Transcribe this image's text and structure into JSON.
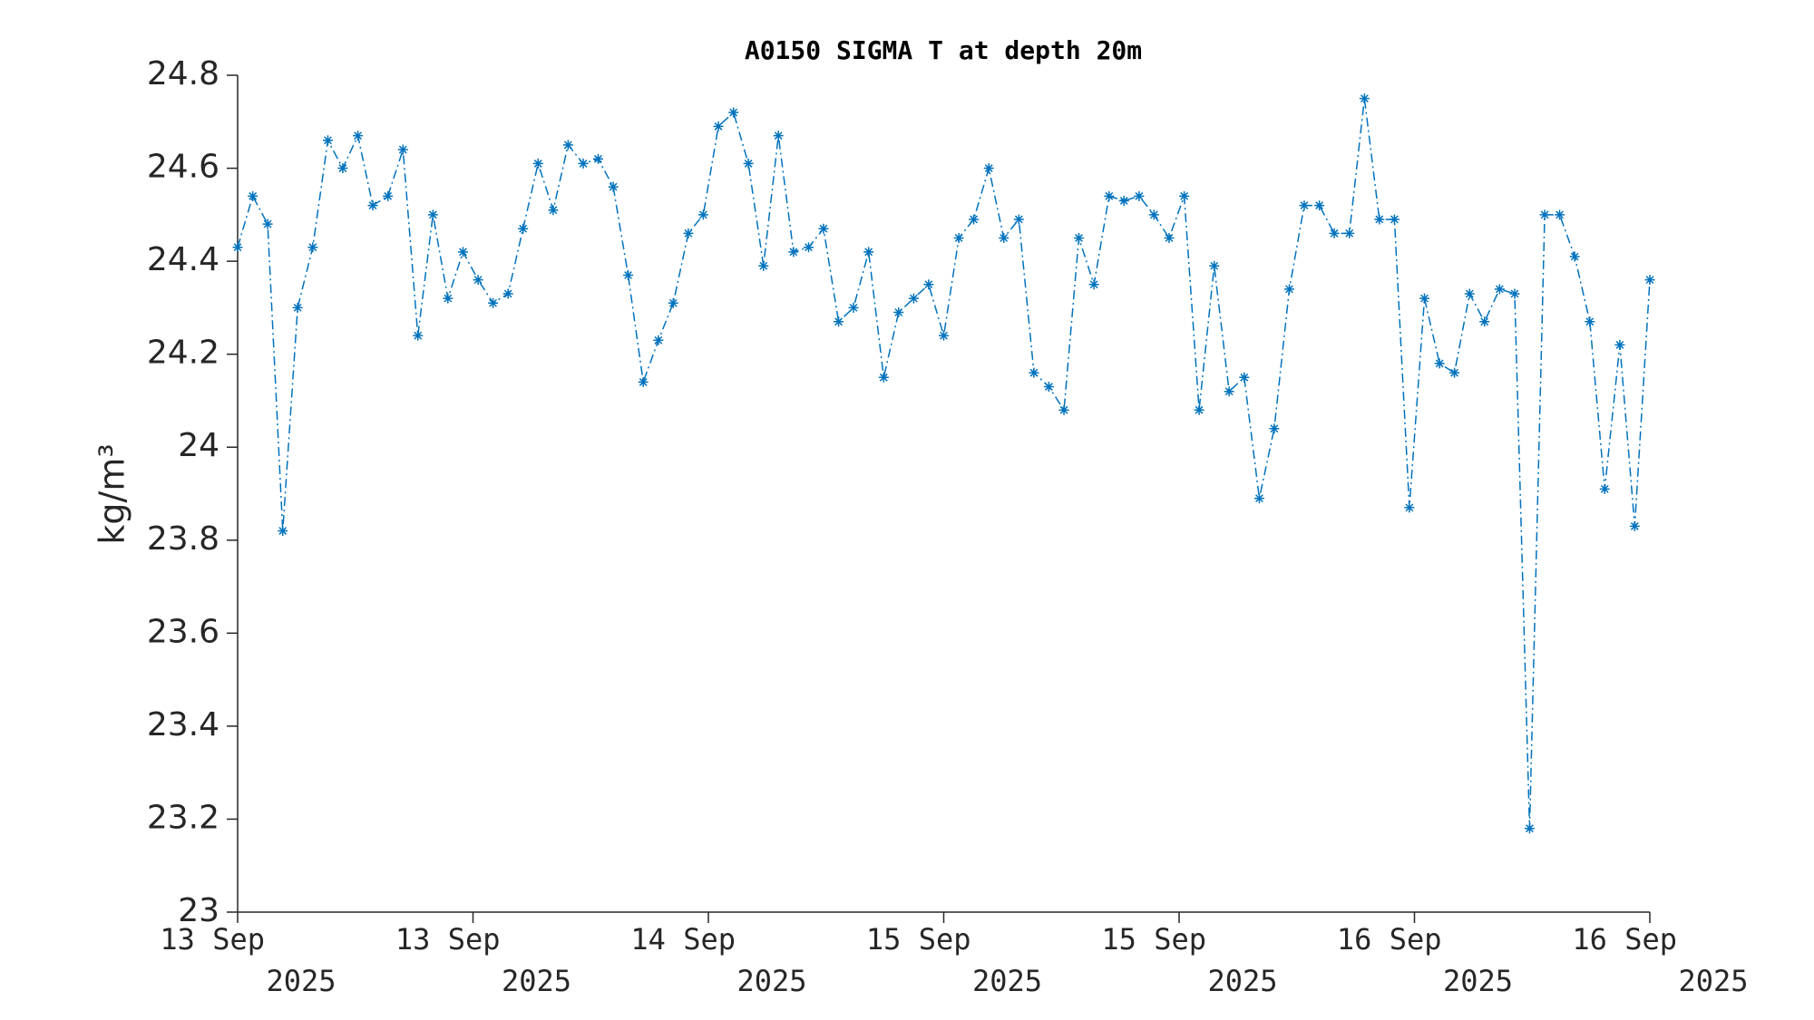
{
  "chart_data": {
    "type": "line",
    "title": "A0150 SIGMA T at depth 20m",
    "y_label": "kg/m³",
    "color": "#0072bd",
    "marker": "asterisk",
    "xlim": [
      0,
      72
    ],
    "xticks": [
      {
        "value": 0,
        "label": "13 Sep 2025"
      },
      {
        "value": 12,
        "label": "13 Sep 2025"
      },
      {
        "value": 24,
        "label": "14 Sep 2025"
      },
      {
        "value": 36,
        "label": "15 Sep 2025"
      },
      {
        "value": 48,
        "label": "15 Sep 2025"
      },
      {
        "value": 60,
        "label": "16 Sep 2025"
      },
      {
        "value": 72,
        "label": "16 Sep 2025"
      }
    ],
    "ylim": [
      23,
      24.8
    ],
    "yticks": [
      23,
      23.2,
      23.4,
      23.6,
      23.8,
      24,
      24.2,
      24.4,
      24.6,
      24.8
    ],
    "x": [
      0,
      0.77,
      1.53,
      2.3,
      3.06,
      3.83,
      4.6,
      5.36,
      6.13,
      6.89,
      7.66,
      8.43,
      9.19,
      9.96,
      10.72,
      11.49,
      12.26,
      13.02,
      13.79,
      14.55,
      15.32,
      16.09,
      16.85,
      17.62,
      18.38,
      19.15,
      19.91,
      20.68,
      21.45,
      22.21,
      22.98,
      23.74,
      24.51,
      25.28,
      26.04,
      26.81,
      27.57,
      28.34,
      29.11,
      29.87,
      30.64,
      31.4,
      32.17,
      32.94,
      33.7,
      34.47,
      35.23,
      36,
      36.77,
      37.53,
      38.3,
      39.06,
      39.83,
      40.6,
      41.36,
      42.13,
      42.89,
      43.66,
      44.43,
      45.19,
      45.96,
      46.72,
      47.49,
      48.26,
      49.02,
      49.79,
      50.55,
      51.32,
      52.09,
      52.85,
      53.62,
      54.38,
      55.15,
      55.91,
      56.68,
      57.45,
      58.21,
      58.98,
      59.74,
      60.51,
      61.28,
      62.04,
      62.81,
      63.57,
      64.34,
      65.11,
      65.87,
      66.64,
      67.4,
      68.17,
      68.94,
      69.7,
      70.47,
      71.23,
      72.0
    ],
    "values": [
      24.43,
      24.54,
      24.48,
      23.82,
      24.3,
      24.43,
      24.66,
      24.6,
      24.67,
      24.52,
      24.54,
      24.64,
      24.24,
      24.5,
      24.32,
      24.42,
      24.36,
      24.31,
      24.33,
      24.47,
      24.61,
      24.51,
      24.65,
      24.61,
      24.62,
      24.56,
      24.37,
      24.14,
      24.23,
      24.31,
      24.46,
      24.5,
      24.69,
      24.72,
      24.61,
      24.39,
      24.67,
      24.42,
      24.43,
      24.47,
      24.27,
      24.3,
      24.42,
      24.15,
      24.29,
      24.32,
      24.35,
      24.24,
      24.45,
      24.49,
      24.6,
      24.45,
      24.49,
      24.16,
      24.13,
      24.08,
      24.45,
      24.35,
      24.54,
      24.53,
      24.54,
      24.5,
      24.45,
      24.54,
      24.08,
      24.39,
      24.12,
      24.15,
      23.89,
      24.04,
      24.34,
      24.52,
      24.52,
      24.46,
      24.46,
      24.75,
      24.49,
      24.49,
      23.87,
      24.32,
      24.18,
      24.16,
      24.33,
      24.27,
      24.34,
      24.33,
      23.18,
      24.5,
      24.5,
      24.41,
      24.27,
      23.91,
      24.22,
      23.83,
      24.36
    ]
  }
}
